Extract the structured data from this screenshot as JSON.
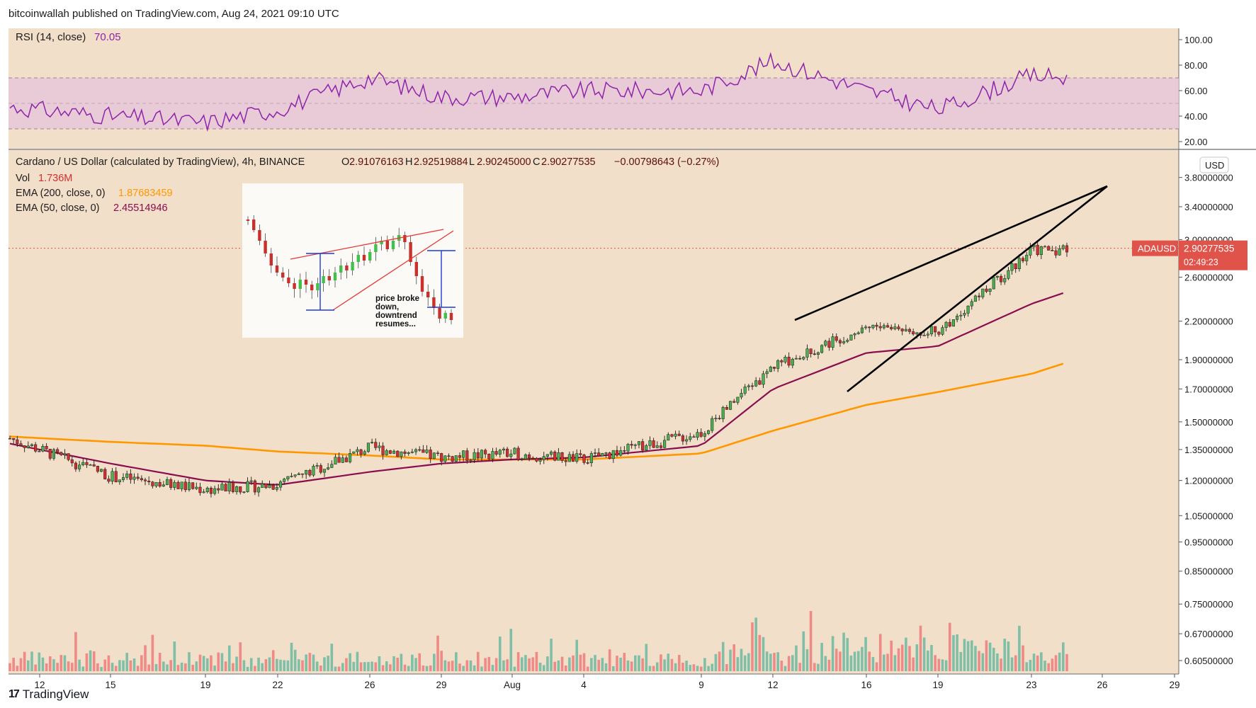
{
  "header": {
    "published": "bitcoinwallah published on TradingView.com, Aug 24, 2021 09:10 UTC"
  },
  "rsi_panel": {
    "label": "RSI (14, close)",
    "value": "70.05",
    "ticks": [
      "100.00",
      "80.00",
      "60.00",
      "40.00",
      "20.00"
    ],
    "tick_values": [
      100,
      80,
      60,
      40,
      20
    ],
    "band_upper": 70,
    "band_lower": 30,
    "line_color": "#8e24aa",
    "band_color": "#e6c8d9"
  },
  "main_panel": {
    "title": "Cardano / US Dollar (calculated by TradingView), 4h, BINANCE",
    "ohlc": {
      "o_label": "O",
      "o": "2.91076163",
      "h_label": "H",
      "h": "2.92519884",
      "l_label": "L",
      "l": "2.90245000",
      "c_label": "C",
      "c": "2.90277535",
      "change": "−0.00798643 (−0.27%)"
    },
    "vol_label": "Vol",
    "vol_value": "1.736M",
    "ema200_label": "EMA (200, close, 0)",
    "ema200_value": "1.87683459",
    "ema50_label": "EMA (50, close, 0)",
    "ema50_value": "2.45514946",
    "currency": "USD",
    "price_tag": {
      "symbol": "ADAUSD",
      "price": "2.90277535",
      "countdown": "02:49:23"
    },
    "price_ticks": [
      "3.80000000",
      "3.40000000",
      "3.00000000",
      "2.60000000",
      "2.20000000",
      "1.90000000",
      "1.70000000",
      "1.50000000",
      "1.35000000",
      "1.20000000",
      "1.05000000",
      "0.95000000",
      "0.85000000",
      "0.75000000",
      "0.67000000",
      "0.60500000"
    ],
    "date_ticks": [
      "12",
      "15",
      "19",
      "22",
      "26",
      "29",
      "Aug",
      "4",
      "9",
      "12",
      "16",
      "19",
      "23",
      "26",
      "29"
    ],
    "inset_text": [
      "price broke",
      "down,",
      "downtrend",
      "resumes..."
    ]
  },
  "colors": {
    "bg": "#f2dfc9",
    "up": "#4caf50",
    "down": "#d32f2f",
    "ema200": "#ff9800",
    "ema50": "#880e4f",
    "vol_up": "#7fbfa8",
    "vol_down": "#ef8a86",
    "price_tag": "#e0534a"
  },
  "chart_data": {
    "type": "candlestick",
    "price_scale": "log",
    "ylim": [
      0.605,
      3.9
    ],
    "x": [
      "Jul 12",
      "Jul 15",
      "Jul 19",
      "Jul 22",
      "Jul 26",
      "Jul 29",
      "Aug 1",
      "Aug 4",
      "Aug 9",
      "Aug 12",
      "Aug 16",
      "Aug 19",
      "Aug 23",
      "Aug 24"
    ],
    "close": [
      1.35,
      1.22,
      1.16,
      1.18,
      1.36,
      1.31,
      1.33,
      1.3,
      1.44,
      1.85,
      2.16,
      2.12,
      2.88,
      2.9
    ],
    "ema200": [
      1.41,
      1.39,
      1.37,
      1.34,
      1.32,
      1.3,
      1.3,
      1.3,
      1.33,
      1.45,
      1.6,
      1.68,
      1.8,
      1.88
    ],
    "ema50": [
      1.35,
      1.28,
      1.2,
      1.18,
      1.24,
      1.28,
      1.3,
      1.31,
      1.37,
      1.7,
      1.95,
      2.0,
      2.35,
      2.46
    ],
    "rsi": [
      45,
      40,
      35,
      45,
      70,
      55,
      55,
      60,
      60,
      83,
      60,
      45,
      72,
      70
    ],
    "patterns": [
      "rising wedge"
    ]
  }
}
